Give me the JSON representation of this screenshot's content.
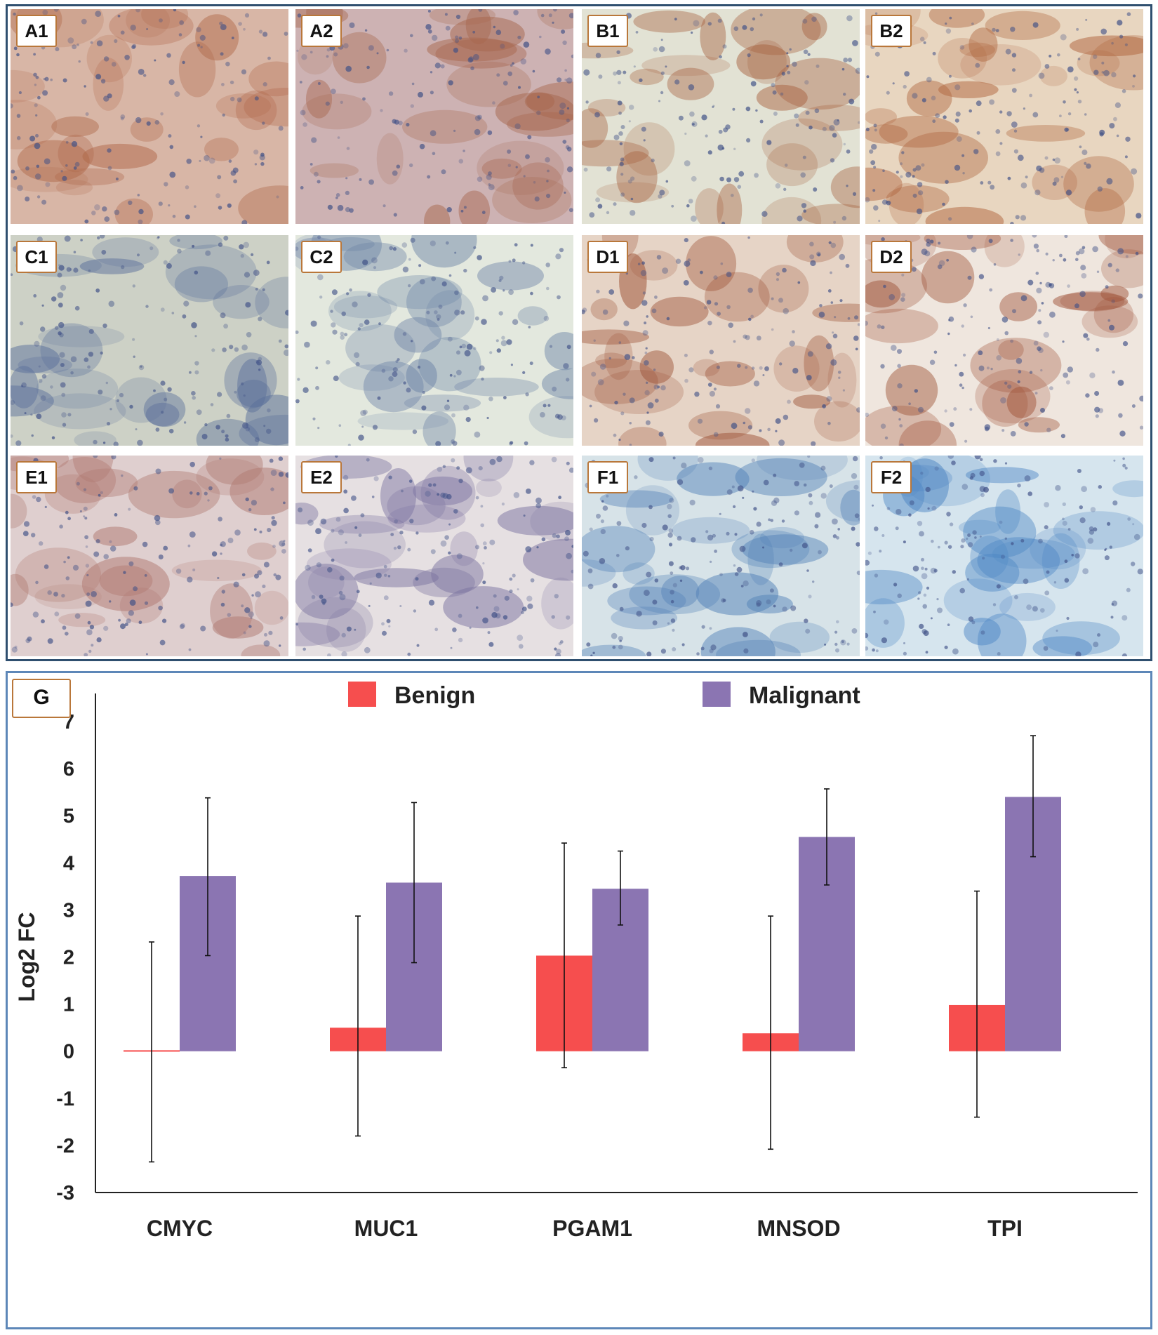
{
  "micrographs": {
    "rows": [
      [
        {
          "label": "A1",
          "stain": "#b0684a",
          "background": "#d8b6a6"
        },
        {
          "label": "A2",
          "stain": "#a7674e",
          "background": "#cdb2b3"
        },
        {
          "label": "B1",
          "stain": "#a55e3c",
          "background": "#e2e2d4"
        },
        {
          "label": "B2",
          "stain": "#b0663f",
          "background": "#e8d6c0"
        }
      ],
      [
        {
          "label": "C1",
          "stain": "#5a6f9a",
          "background": "#cdd1c6"
        },
        {
          "label": "C2",
          "stain": "#6f86a8",
          "background": "#e3e8de"
        },
        {
          "label": "D1",
          "stain": "#9b4e32",
          "background": "#e6d4c6"
        },
        {
          "label": "D2",
          "stain": "#a0543a",
          "background": "#efe6de"
        }
      ],
      [
        {
          "label": "E1",
          "stain": "#b07a72",
          "background": "#dfcfcf"
        },
        {
          "label": "E2",
          "stain": "#7c73a0",
          "background": "#e6e0e2"
        },
        {
          "label": "F1",
          "stain": "#4f7fb6",
          "background": "#d7e3e8"
        },
        {
          "label": "F2",
          "stain": "#4c86c4",
          "background": "#d6e5ee"
        }
      ]
    ]
  },
  "chart": {
    "panel_label": "G"
  },
  "chart_data": {
    "type": "bar",
    "title": "",
    "xlabel": "",
    "ylabel": "Log2 FC",
    "ylim": [
      -3,
      7
    ],
    "yticks": [
      "-3",
      "-2",
      "-1",
      "0",
      "1",
      "2",
      "3",
      "4",
      "5",
      "6",
      "7"
    ],
    "legend_position": "top",
    "grid": false,
    "categories": [
      "CMYC",
      "MUC1",
      "PGAM1",
      "MNSOD",
      "TPI"
    ],
    "series": [
      {
        "name": "Benign",
        "color": "#f64e4e",
        "values": [
          0.02,
          0.5,
          2.03,
          0.38,
          0.98
        ],
        "error_low": [
          -2.35,
          -1.8,
          -0.35,
          -2.08,
          -1.4
        ],
        "error_high": [
          2.32,
          2.87,
          4.42,
          2.87,
          3.4
        ]
      },
      {
        "name": "Malignant",
        "color": "#8b75b2",
        "values": [
          3.72,
          3.58,
          3.45,
          4.55,
          5.4
        ],
        "error_low": [
          2.03,
          1.88,
          2.68,
          3.53,
          4.13
        ],
        "error_high": [
          5.38,
          5.28,
          4.25,
          5.57,
          6.7
        ]
      }
    ]
  }
}
